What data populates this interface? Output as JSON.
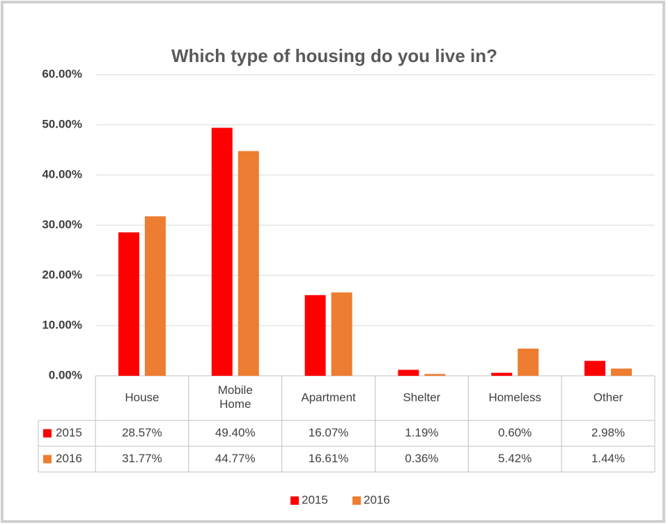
{
  "chart_data": {
    "type": "bar",
    "title": "Which type of housing do you live in?",
    "categories": [
      "House",
      "Mobile Home",
      "Apartment",
      "Shelter",
      "Homeless",
      "Other"
    ],
    "series": [
      {
        "name": "2015",
        "color": "#ff0000",
        "values": [
          28.57,
          49.4,
          16.07,
          1.19,
          0.6,
          2.98
        ],
        "value_labels": [
          "28.57%",
          "49.40%",
          "16.07%",
          "1.19%",
          "0.60%",
          "2.98%"
        ]
      },
      {
        "name": "2016",
        "color": "#ed7d31",
        "values": [
          31.77,
          44.77,
          16.61,
          0.36,
          5.42,
          1.44
        ],
        "value_labels": [
          "31.77%",
          "44.77%",
          "16.61%",
          "0.36%",
          "5.42%",
          "1.44%"
        ]
      }
    ],
    "ylim": [
      0,
      60
    ],
    "yticks": [
      {
        "value": 0,
        "label": "0.00%"
      },
      {
        "value": 10,
        "label": "10.00%"
      },
      {
        "value": 20,
        "label": "20.00%"
      },
      {
        "value": 30,
        "label": "30.00%"
      },
      {
        "value": 40,
        "label": "40.00%"
      },
      {
        "value": 50,
        "label": "50.00%"
      },
      {
        "value": 60,
        "label": "60.00%"
      }
    ],
    "grid": true,
    "legend": "bottom"
  }
}
